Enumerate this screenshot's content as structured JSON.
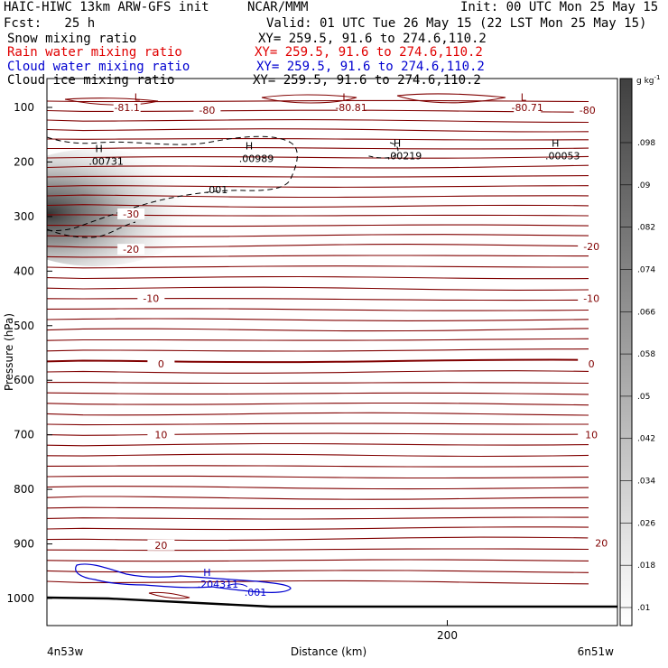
{
  "header": {
    "title_left": "HAIC-HIWC 13km ARW-GFS init",
    "center": "NCAR/MMM",
    "init": "Init: 00 UTC Mon 25 May 15",
    "fcst": "Fcst:   25 h",
    "valid": "Valid: 01 UTC Tue 26 May 15 (22 LST Mon 25 May 15)"
  },
  "fields": [
    {
      "name": "Snow mixing ratio",
      "xy": "XY= 259.5, 91.6 to 274.6,110.2",
      "color": "#000000"
    },
    {
      "name": "Rain water mixing ratio",
      "xy": "XY= 259.5, 91.6 to 274.6,110.2",
      "color": "#e00000"
    },
    {
      "name": "Cloud water mixing ratio",
      "xy": "XY= 259.5, 91.6 to 274.6,110.2",
      "color": "#0000d0"
    },
    {
      "name": "Cloud ice mixing ratio",
      "xy": "XY= 259.5, 91.6 to 274.6,110.2",
      "color": "#000000"
    }
  ],
  "chart_data": {
    "type": "contour",
    "xlabel": "Distance (km)",
    "ylabel": "Pressure (hPa)",
    "xlim": [
      0,
      285
    ],
    "ylim": [
      1050,
      50
    ],
    "x_ticks": [
      200
    ],
    "y_ticks": [
      100,
      200,
      300,
      400,
      500,
      600,
      700,
      800,
      900,
      1000
    ],
    "x_left_label": "4n53w",
    "x_right_label": "6n51w",
    "colorbar": {
      "unit": "g kg",
      "unit_sup": "-1",
      "labels": [
        ".098",
        ".09",
        ".082",
        ".074",
        ".066",
        ".058",
        ".05",
        ".042",
        ".034",
        ".026",
        ".018",
        ".01"
      ]
    },
    "temperature_contours": {
      "color": "#800000",
      "labels": [
        {
          "text": "-81.1",
          "x": 40,
          "p": 100
        },
        {
          "text": "-80",
          "x": 80,
          "p": 105
        },
        {
          "text": "-80.81",
          "x": 152,
          "p": 100
        },
        {
          "text": "-80.71",
          "x": 240,
          "p": 100
        },
        {
          "text": "-80",
          "x": 270,
          "p": 105
        },
        {
          "text": "-30",
          "x": 42,
          "p": 295
        },
        {
          "text": "-20",
          "x": 42,
          "p": 360
        },
        {
          "text": "-20",
          "x": 272,
          "p": 355
        },
        {
          "text": "-10",
          "x": 52,
          "p": 450
        },
        {
          "text": "-10",
          "x": 272,
          "p": 450
        },
        {
          "text": "0",
          "x": 57,
          "p": 570
        },
        {
          "text": "0",
          "x": 272,
          "p": 570
        },
        {
          "text": "10",
          "x": 57,
          "p": 700
        },
        {
          "text": "10",
          "x": 272,
          "p": 700
        },
        {
          "text": "20",
          "x": 57,
          "p": 902
        },
        {
          "text": "20",
          "x": 277,
          "p": 898
        }
      ],
      "extrema": [
        {
          "type": "L",
          "x": 45,
          "p": 81
        },
        {
          "type": "L",
          "x": 149,
          "p": 81
        },
        {
          "type": "L",
          "x": 238,
          "p": 81
        }
      ]
    },
    "ice_contours": {
      "contour_label": ".001",
      "maxima": [
        {
          "label": "H",
          "value": ".00731",
          "x": 26,
          "p": 195
        },
        {
          "label": "H",
          "value": ".00989",
          "x": 101,
          "p": 190
        },
        {
          "label": "H",
          "value": ".00219",
          "x": 175,
          "p": 185
        },
        {
          "label": "H",
          "value": ".00053",
          "x": 254,
          "p": 185
        }
      ]
    },
    "cloud_water_contours": {
      "color": "#0000d0",
      "contour_label": ".001",
      "maxima": [
        {
          "label": "H",
          "value": ".204311",
          "x": 80,
          "p": 975
        }
      ]
    },
    "snow_shading_max": {
      "x": 15,
      "p": 270
    }
  }
}
